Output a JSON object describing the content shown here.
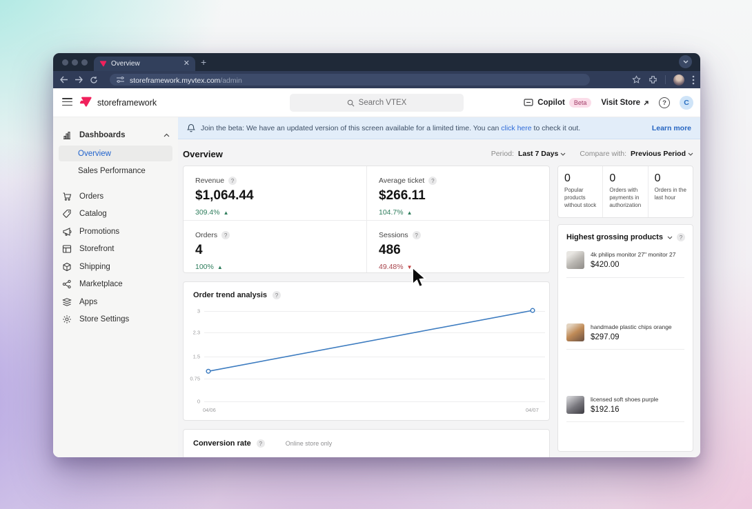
{
  "browser": {
    "tab_title": "Overview",
    "url_host": "storeframework.myvtex.com",
    "url_path": "/admin"
  },
  "topbar": {
    "account": "storeframework",
    "search_placeholder": "Search VTEX",
    "copilot_label": "Copilot",
    "copilot_badge": "Beta",
    "visit_store_label": "Visit Store",
    "avatar_initial": "C"
  },
  "banner": {
    "text_before": "Join the beta: We have an updated version of this screen available for a limited time. You can ",
    "link_text": "click here",
    "text_after": " to check it out.",
    "learn_more": "Learn more"
  },
  "sidebar": {
    "section_label": "Dashboards",
    "sub_items": [
      {
        "label": "Overview"
      },
      {
        "label": "Sales Performance"
      }
    ],
    "items": [
      {
        "label": "Orders"
      },
      {
        "label": "Catalog"
      },
      {
        "label": "Promotions"
      },
      {
        "label": "Storefront"
      },
      {
        "label": "Shipping"
      },
      {
        "label": "Marketplace"
      },
      {
        "label": "Apps"
      },
      {
        "label": "Store Settings"
      }
    ]
  },
  "page": {
    "title": "Overview",
    "period_label": "Period:",
    "period_value": "Last 7 Days",
    "compare_label": "Compare with:",
    "compare_value": "Previous Period"
  },
  "metrics": [
    {
      "label": "Revenue",
      "value": "$1,064.44",
      "delta": "309.4%",
      "direction": "up"
    },
    {
      "label": "Average ticket",
      "value": "$266.11",
      "delta": "104.7%",
      "direction": "up"
    },
    {
      "label": "Orders",
      "value": "4",
      "delta": "100%",
      "direction": "up"
    },
    {
      "label": "Sessions",
      "value": "486",
      "delta": "49.48%",
      "direction": "down"
    }
  ],
  "quick_stats": [
    {
      "value": "0",
      "label": "Popular products without stock"
    },
    {
      "value": "0",
      "label": "Orders with payments in authorization"
    },
    {
      "value": "0",
      "label": "Orders in the last hour"
    }
  ],
  "grossing": {
    "title": "Highest grossing products",
    "items": [
      {
        "name": "4k philips monitor 27\" monitor 27",
        "price": "$420.00"
      },
      {
        "name": "handmade plastic chips orange",
        "price": "$297.09"
      },
      {
        "name": "licensed soft shoes purple",
        "price": "$192.16"
      }
    ]
  },
  "chart_data": {
    "type": "line",
    "title": "Order trend analysis",
    "x": [
      "04/06",
      "04/07"
    ],
    "series": [
      {
        "name": "Orders",
        "values": [
          1,
          3.02
        ]
      }
    ],
    "yticks": [
      0,
      0.75,
      1.5,
      2.3,
      3
    ],
    "ytick_labels": [
      "0",
      "0.75",
      "1.5",
      "2.3",
      "3"
    ],
    "ylim": [
      0,
      3
    ],
    "grid": true,
    "line_color": "#3d7cc0"
  },
  "conversion": {
    "title": "Conversion rate",
    "note": "Online store only"
  },
  "icons": {
    "up": "▲",
    "down": "▼"
  },
  "colors": {
    "brand_pink": "#f0215c",
    "positive": "#2e7d5c",
    "negative": "#a8444c",
    "link_blue": "#2f6bd8"
  }
}
